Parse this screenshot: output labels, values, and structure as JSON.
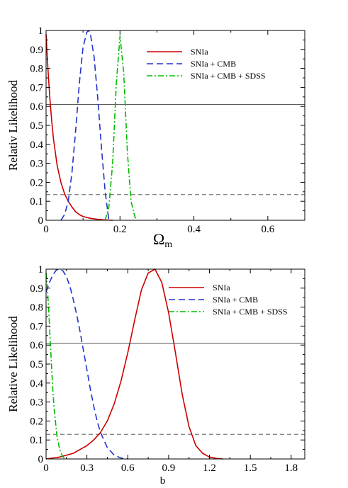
{
  "chart_data": [
    {
      "type": "line",
      "xlabel": "Ω",
      "xlabel_sub": "m",
      "ylabel": "Relativ Likelihood",
      "xlim": [
        0,
        0.7
      ],
      "ylim": [
        0,
        1
      ],
      "xticks": [
        0,
        0.2,
        0.4,
        0.6
      ],
      "xtick_labels": [
        "0",
        "0.2",
        "0.4",
        "0.6"
      ],
      "yticks": [
        0,
        0.1,
        0.2,
        0.3,
        0.4,
        0.5,
        0.6,
        0.7,
        0.8,
        0.9,
        1
      ],
      "ytick_labels": [
        "0",
        "0.1",
        "0.2",
        "0.3",
        "0.4",
        "0.5",
        "0.6",
        "0.7",
        "0.8",
        "0.9",
        "1"
      ],
      "grid": false,
      "legend_position": "top-right",
      "reference_lines": [
        {
          "y": 0.61,
          "style": "solid"
        },
        {
          "y": 0.135,
          "style": "dashed"
        }
      ],
      "series": [
        {
          "name": "SNIa",
          "color": "#cc0000",
          "style": "solid",
          "x": [
            0,
            0.005,
            0.01,
            0.015,
            0.02,
            0.03,
            0.04,
            0.05,
            0.06,
            0.07,
            0.08,
            0.09,
            0.1,
            0.12,
            0.14,
            0.16,
            0.18
          ],
          "y": [
            0.98,
            0.8,
            0.65,
            0.53,
            0.43,
            0.29,
            0.2,
            0.14,
            0.1,
            0.07,
            0.045,
            0.03,
            0.02,
            0.01,
            0.005,
            0.002,
            0
          ]
        },
        {
          "name": "SNIa + CMB",
          "color": "#2233cc",
          "style": "dashed",
          "x": [
            0.04,
            0.05,
            0.06,
            0.07,
            0.08,
            0.09,
            0.1,
            0.11,
            0.115,
            0.12,
            0.13,
            0.14,
            0.15,
            0.16,
            0.17
          ],
          "y": [
            0,
            0.03,
            0.1,
            0.25,
            0.47,
            0.72,
            0.91,
            0.99,
            1,
            0.98,
            0.86,
            0.64,
            0.38,
            0.15,
            0
          ]
        },
        {
          "name": "SNIa + CMB + SDSS",
          "color": "#00bb00",
          "style": "dashdot",
          "x": [
            0.16,
            0.17,
            0.18,
            0.19,
            0.2,
            0.21,
            0.22,
            0.23,
            0.24,
            0.245
          ],
          "y": [
            0,
            0.07,
            0.3,
            0.72,
            0.97,
            0.78,
            0.36,
            0.1,
            0.02,
            0
          ]
        }
      ]
    },
    {
      "type": "line",
      "xlabel": "b",
      "ylabel": "Relative Likelihood",
      "xlim": [
        0,
        1.9
      ],
      "ylim": [
        0,
        1
      ],
      "xticks": [
        0,
        0.3,
        0.6,
        0.9,
        1.2,
        1.5,
        1.8
      ],
      "xtick_labels": [
        "0",
        "0.3",
        "0.6",
        "0.9",
        "1.2",
        "1.5",
        "1.8"
      ],
      "yticks": [
        0,
        0.1,
        0.2,
        0.3,
        0.4,
        0.5,
        0.6,
        0.7,
        0.8,
        0.9,
        1
      ],
      "ytick_labels": [
        "0",
        "0.1",
        "0.2",
        "0.3",
        "0.4",
        "0.5",
        "0.6",
        "0.7",
        "0.8",
        "0.9",
        "1"
      ],
      "grid": false,
      "legend_position": "top-right",
      "reference_lines": [
        {
          "y": 0.61,
          "style": "solid"
        },
        {
          "y": 0.13,
          "style": "dashed"
        }
      ],
      "series": [
        {
          "name": "SNIa",
          "color": "#cc0000",
          "style": "solid",
          "x": [
            0,
            0.1,
            0.2,
            0.3,
            0.35,
            0.4,
            0.45,
            0.5,
            0.55,
            0.6,
            0.65,
            0.7,
            0.75,
            0.8,
            0.85,
            0.9,
            0.95,
            1.0,
            1.05,
            1.1,
            1.15,
            1.2,
            1.25,
            1.3
          ],
          "y": [
            0,
            0.01,
            0.03,
            0.07,
            0.1,
            0.14,
            0.2,
            0.29,
            0.41,
            0.56,
            0.73,
            0.89,
            0.98,
            1,
            0.93,
            0.77,
            0.56,
            0.34,
            0.17,
            0.07,
            0.03,
            0.01,
            0.003,
            0
          ]
        },
        {
          "name": "SNIa + CMB",
          "color": "#2233cc",
          "style": "dashed",
          "x": [
            0,
            0.025,
            0.05,
            0.075,
            0.1,
            0.125,
            0.15,
            0.175,
            0.2,
            0.225,
            0.25,
            0.275,
            0.3,
            0.325,
            0.35,
            0.375,
            0.4,
            0.45,
            0.5,
            0.55,
            0.6
          ],
          "y": [
            0.88,
            0.93,
            0.97,
            0.995,
            1,
            0.99,
            0.96,
            0.91,
            0.84,
            0.76,
            0.67,
            0.57,
            0.47,
            0.37,
            0.28,
            0.2,
            0.14,
            0.06,
            0.02,
            0.005,
            0
          ]
        },
        {
          "name": "SNIa + CMB + SDSS",
          "color": "#00bb00",
          "style": "dashdot",
          "x": [
            0,
            0.01,
            0.02,
            0.03,
            0.04,
            0.05,
            0.06,
            0.08,
            0.1,
            0.12,
            0.14
          ],
          "y": [
            0.98,
            0.9,
            0.78,
            0.63,
            0.49,
            0.36,
            0.26,
            0.12,
            0.05,
            0.015,
            0
          ]
        }
      ]
    }
  ]
}
